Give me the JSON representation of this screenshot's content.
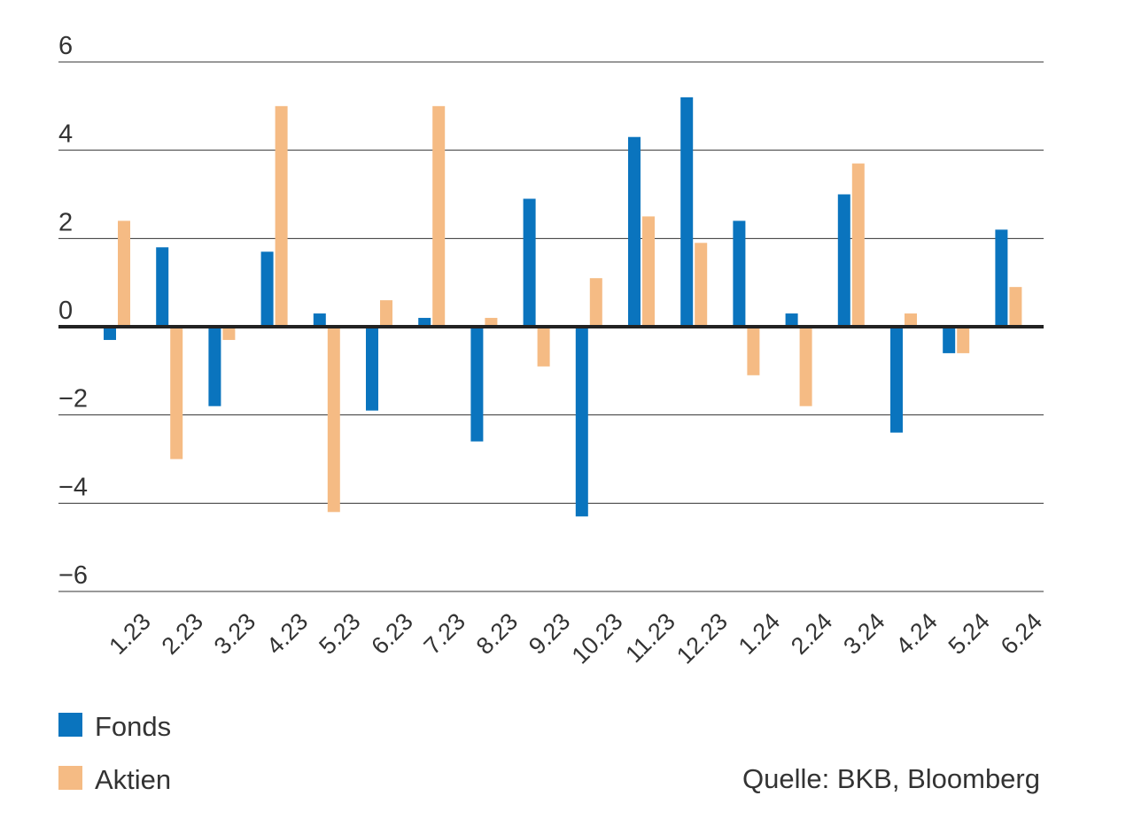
{
  "chart_data": {
    "type": "bar",
    "categories": [
      "1.23",
      "2.23",
      "3.23",
      "4.23",
      "5.23",
      "6.23",
      "7.23",
      "8.23",
      "9.23",
      "10.23",
      "11.23",
      "12.23",
      "1.24",
      "2.24",
      "3.24",
      "4.24",
      "5.24",
      "6.24"
    ],
    "series": [
      {
        "name": "Fonds",
        "color": "#0A74BE",
        "values": [
          -0.3,
          1.8,
          -1.8,
          1.7,
          0.3,
          -1.9,
          0.2,
          -2.6,
          2.9,
          -4.3,
          4.3,
          5.2,
          2.4,
          0.3,
          3.0,
          -2.4,
          -0.6,
          2.2
        ]
      },
      {
        "name": "Aktien",
        "color": "#F5BB84",
        "values": [
          2.4,
          -3.0,
          -0.3,
          5.0,
          -4.2,
          0.6,
          5.0,
          0.2,
          -0.9,
          1.1,
          2.5,
          1.9,
          -1.1,
          -1.8,
          3.7,
          0.3,
          -0.6,
          0.9
        ]
      }
    ],
    "yticks": [
      6,
      4,
      2,
      0,
      -2,
      -4,
      -6
    ],
    "ytick_labels": [
      "6",
      "4",
      "2",
      "0",
      "−2",
      "−4",
      "−6"
    ],
    "ylim": [
      -6,
      6
    ],
    "grid": true,
    "legend_position": "bottom-left",
    "title": "",
    "xlabel": "",
    "ylabel": ""
  },
  "source": "Quelle: BKB, Bloomberg"
}
